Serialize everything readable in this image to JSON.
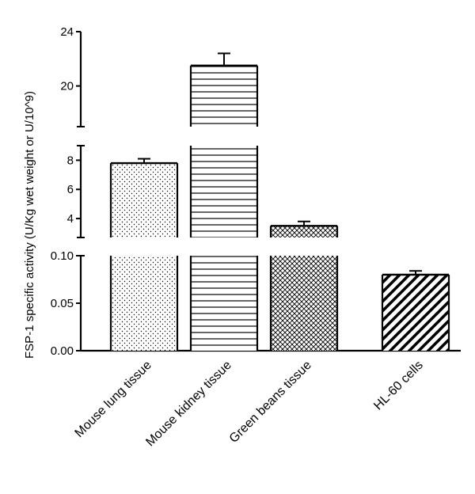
{
  "chart_data": {
    "type": "bar",
    "title": "",
    "xlabel": "",
    "ylabel": "FSP-1 specific activity (U/Kg wet weight or U/10^9)",
    "axis_breaks": "y-axis split into three segments",
    "segments": [
      {
        "name": "top",
        "ylim": [
          17,
          24
        ],
        "ticks": [
          20,
          24
        ],
        "tick_labels": [
          "20",
          "24"
        ]
      },
      {
        "name": "middle",
        "ylim": [
          2.7,
          9
        ],
        "ticks": [
          4,
          6,
          8
        ],
        "tick_labels": [
          "4",
          "6",
          "8"
        ]
      },
      {
        "name": "bottom",
        "ylim": [
          0,
          0.1
        ],
        "ticks": [
          0,
          0.05,
          0.1
        ],
        "tick_labels": [
          "0.00",
          "0.05",
          "0.10"
        ]
      }
    ],
    "categories": [
      "Mouse lung tissue",
      "Mouse kidney tissue",
      "Green beans tissue",
      "HL-60 cells"
    ],
    "bars": [
      {
        "category": "Mouse lung tissue",
        "segment": "middle",
        "value": 7.8,
        "error": 0.3,
        "pattern": "dots"
      },
      {
        "category": "Mouse kidney tissue",
        "segment": "top",
        "value": 21.5,
        "error": 0.9,
        "pattern": "horizontal-lines"
      },
      {
        "category": "Green beans tissue",
        "segment": "middle",
        "value": 3.5,
        "error": 0.3,
        "pattern": "crosshatch"
      },
      {
        "category": "HL-60 cells",
        "segment": "bottom",
        "value": 0.08,
        "error": 0.004,
        "pattern": "diagonal-stripes"
      }
    ],
    "grid": false,
    "legend": "none"
  }
}
